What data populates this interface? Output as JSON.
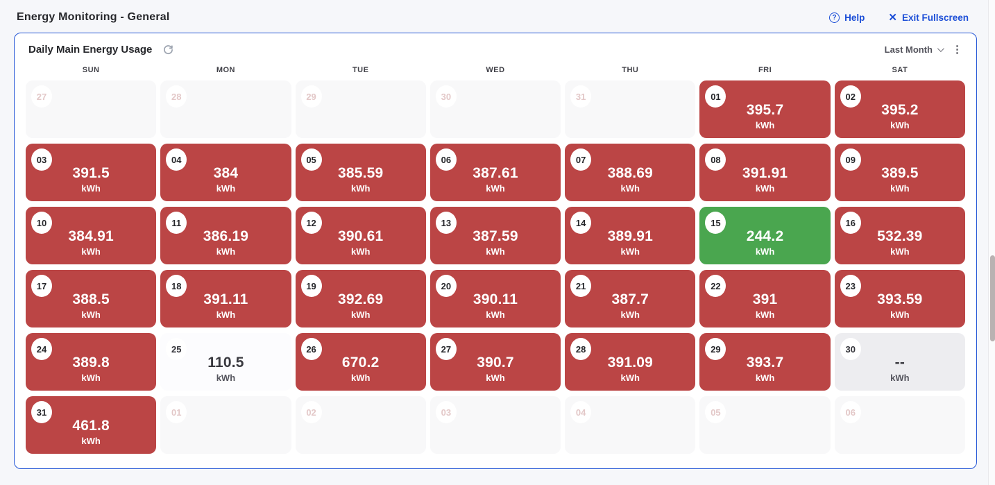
{
  "page": {
    "title": "Energy Monitoring - General"
  },
  "topbar": {
    "help_label": "Help",
    "help_icon_glyph": "?",
    "exit_fullscreen_label": "Exit Fullscreen",
    "close_icon_glyph": "✕"
  },
  "card": {
    "title": "Daily Main Energy Usage",
    "period_selected": "Last Month",
    "kebab_icon_glyph": "⋮",
    "unit": "kWh",
    "weekdays": [
      "SUN",
      "MON",
      "TUE",
      "WED",
      "THU",
      "FRI",
      "SAT"
    ],
    "cells": [
      {
        "day": "27",
        "state": "out"
      },
      {
        "day": "28",
        "state": "out"
      },
      {
        "day": "29",
        "state": "out"
      },
      {
        "day": "30",
        "state": "out"
      },
      {
        "day": "31",
        "state": "out"
      },
      {
        "day": "01",
        "value": "395.7",
        "state": "high"
      },
      {
        "day": "02",
        "value": "395.2",
        "state": "high"
      },
      {
        "day": "03",
        "value": "391.5",
        "state": "high"
      },
      {
        "day": "04",
        "value": "384",
        "state": "high"
      },
      {
        "day": "05",
        "value": "385.59",
        "state": "high"
      },
      {
        "day": "06",
        "value": "387.61",
        "state": "high"
      },
      {
        "day": "07",
        "value": "388.69",
        "state": "high"
      },
      {
        "day": "08",
        "value": "391.91",
        "state": "high"
      },
      {
        "day": "09",
        "value": "389.5",
        "state": "high"
      },
      {
        "day": "10",
        "value": "384.91",
        "state": "high"
      },
      {
        "day": "11",
        "value": "386.19",
        "state": "high"
      },
      {
        "day": "12",
        "value": "390.61",
        "state": "high"
      },
      {
        "day": "13",
        "value": "387.59",
        "state": "high"
      },
      {
        "day": "14",
        "value": "389.91",
        "state": "high"
      },
      {
        "day": "15",
        "value": "244.2",
        "state": "low"
      },
      {
        "day": "16",
        "value": "532.39",
        "state": "high"
      },
      {
        "day": "17",
        "value": "388.5",
        "state": "high"
      },
      {
        "day": "18",
        "value": "391.11",
        "state": "high"
      },
      {
        "day": "19",
        "value": "392.69",
        "state": "high"
      },
      {
        "day": "20",
        "value": "390.11",
        "state": "high"
      },
      {
        "day": "21",
        "value": "387.7",
        "state": "high"
      },
      {
        "day": "22",
        "value": "391",
        "state": "high"
      },
      {
        "day": "23",
        "value": "393.59",
        "state": "high"
      },
      {
        "day": "24",
        "value": "389.8",
        "state": "high"
      },
      {
        "day": "25",
        "value": "110.5",
        "state": "plain"
      },
      {
        "day": "26",
        "value": "670.2",
        "state": "high"
      },
      {
        "day": "27",
        "value": "390.7",
        "state": "high"
      },
      {
        "day": "28",
        "value": "391.09",
        "state": "high"
      },
      {
        "day": "29",
        "value": "393.7",
        "state": "high"
      },
      {
        "day": "30",
        "value": "--",
        "state": "nodata"
      },
      {
        "day": "31",
        "value": "461.8",
        "state": "high"
      },
      {
        "day": "01",
        "state": "out"
      },
      {
        "day": "02",
        "state": "out"
      },
      {
        "day": "03",
        "state": "out"
      },
      {
        "day": "04",
        "state": "out"
      },
      {
        "day": "05",
        "state": "out"
      },
      {
        "day": "06",
        "state": "out"
      }
    ]
  },
  "colors": {
    "accent_blue": "#1d4fd7",
    "card_border_blue": "#2456d6",
    "usage_high_red": "#bb4545",
    "usage_low_green": "#4aa64f",
    "no_data_gray": "#ededf0",
    "adjacent_month_bg": "#f8f8f9"
  }
}
